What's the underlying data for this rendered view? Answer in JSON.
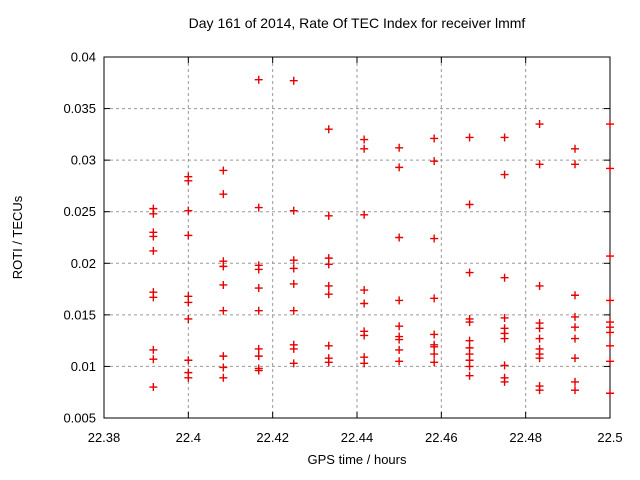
{
  "chart_data": {
    "type": "scatter",
    "title": "Day 161 of 2014, Rate Of TEC Index for receiver lmmf",
    "xlabel": "GPS time / hours",
    "ylabel": "ROTI / TECUs",
    "xlim": [
      22.38,
      22.5
    ],
    "ylim": [
      0.005,
      0.04
    ],
    "xticks": [
      {
        "value": 22.38,
        "label": "22.38"
      },
      {
        "value": 22.4,
        "label": "22.4"
      },
      {
        "value": 22.42,
        "label": "22.42"
      },
      {
        "value": 22.44,
        "label": "22.44"
      },
      {
        "value": 22.46,
        "label": "22.46"
      },
      {
        "value": 22.48,
        "label": "22.48"
      },
      {
        "value": 22.5,
        "label": "22.5"
      }
    ],
    "yticks": [
      {
        "value": 0.005,
        "label": "0.005"
      },
      {
        "value": 0.01,
        "label": "0.01"
      },
      {
        "value": 0.015,
        "label": "0.015"
      },
      {
        "value": 0.02,
        "label": "0.02"
      },
      {
        "value": 0.025,
        "label": "0.025"
      },
      {
        "value": 0.03,
        "label": "0.03"
      },
      {
        "value": 0.035,
        "label": "0.035"
      },
      {
        "value": 0.04,
        "label": "0.04"
      }
    ],
    "grid": true,
    "legend_position": "none",
    "marker": "plus",
    "series": [
      {
        "name": "ROTI",
        "color": "#e60000",
        "columns": [
          {
            "x": 22.3917,
            "y": [
              0.0253,
              0.0248,
              0.023,
              0.0226,
              0.0212,
              0.0172,
              0.0167,
              0.0116,
              0.0107,
              0.008
            ]
          },
          {
            "x": 22.4,
            "y": [
              0.0284,
              0.028,
              0.0251,
              0.0227,
              0.0168,
              0.0162,
              0.0146,
              0.0106,
              0.0094,
              0.0089
            ]
          },
          {
            "x": 22.4083,
            "y": [
              0.029,
              0.0267,
              0.0202,
              0.0197,
              0.0179,
              0.0154,
              0.011,
              0.0099,
              0.0089
            ]
          },
          {
            "x": 22.4167,
            "y": [
              0.0378,
              0.0254,
              0.0198,
              0.0194,
              0.0176,
              0.0154,
              0.0117,
              0.011,
              0.0098,
              0.0096
            ]
          },
          {
            "x": 22.425,
            "y": [
              0.0377,
              0.0251,
              0.0203,
              0.0195,
              0.018,
              0.0154,
              0.0121,
              0.0117,
              0.0103
            ]
          },
          {
            "x": 22.4333,
            "y": [
              0.033,
              0.0246,
              0.0205,
              0.0199,
              0.0178,
              0.017,
              0.012,
              0.0108,
              0.0104
            ]
          },
          {
            "x": 22.4417,
            "y": [
              0.032,
              0.0311,
              0.0247,
              0.0174,
              0.0161,
              0.0134,
              0.013,
              0.0109,
              0.0103
            ]
          },
          {
            "x": 22.45,
            "y": [
              0.0312,
              0.0293,
              0.0225,
              0.0164,
              0.0139,
              0.0129,
              0.0126,
              0.0116,
              0.0105
            ]
          },
          {
            "x": 22.4583,
            "y": [
              0.0321,
              0.0299,
              0.0224,
              0.0166,
              0.0131,
              0.0121,
              0.0119,
              0.0112,
              0.0104
            ]
          },
          {
            "x": 22.4667,
            "y": [
              0.0322,
              0.0257,
              0.0191,
              0.0146,
              0.0143,
              0.0125,
              0.0118,
              0.0112,
              0.0106,
              0.01,
              0.0091
            ]
          },
          {
            "x": 22.475,
            "y": [
              0.0322,
              0.0286,
              0.0186,
              0.0147,
              0.0137,
              0.0132,
              0.0127,
              0.0101,
              0.0089,
              0.0085
            ]
          },
          {
            "x": 22.4833,
            "y": [
              0.0335,
              0.0296,
              0.0178,
              0.0142,
              0.0137,
              0.0127,
              0.0117,
              0.0112,
              0.0108,
              0.0081,
              0.0077
            ]
          },
          {
            "x": 22.4917,
            "y": [
              0.0311,
              0.0296,
              0.0169,
              0.0148,
              0.0138,
              0.0127,
              0.0108,
              0.0085,
              0.0077
            ]
          },
          {
            "x": 22.5,
            "y": [
              0.0335,
              0.0292,
              0.0207,
              0.0164,
              0.0143,
              0.0138,
              0.0133,
              0.012,
              0.0105,
              0.0074
            ]
          }
        ]
      }
    ]
  },
  "style": {
    "background": "#ffffff",
    "frame_color": "#000000",
    "grid_color": "#9a9a9a",
    "text_color": "#000000",
    "marker_color": "#e60000"
  }
}
